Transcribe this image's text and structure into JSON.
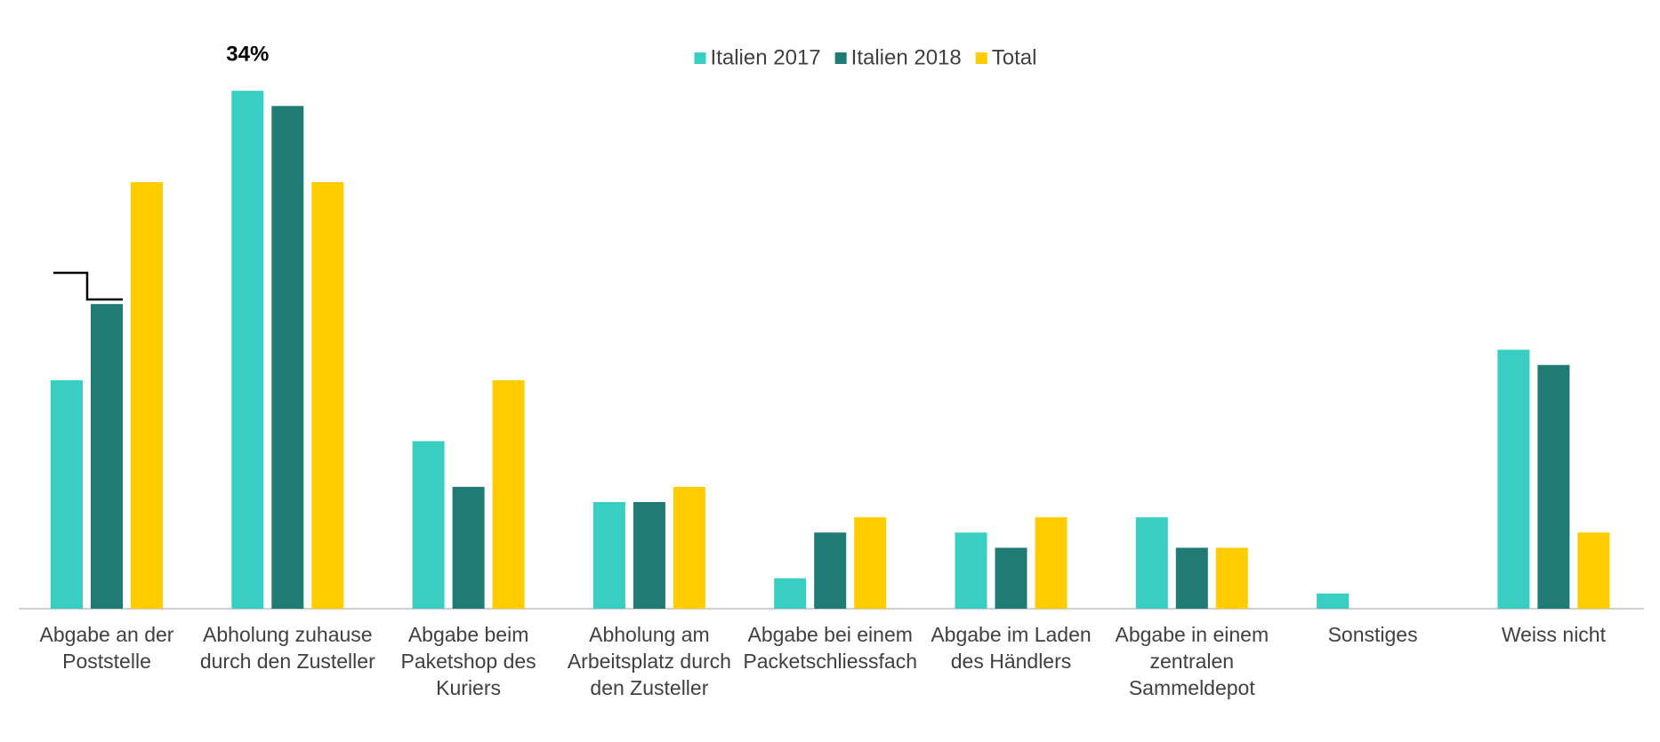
{
  "chart_data": {
    "type": "bar",
    "categories": [
      "Abgabe an der Poststelle",
      "Abholung zuhause durch den Zusteller",
      "Abgabe beim Paketshop des Kuriers",
      "Abholung am Arbeitsplatz durch den Zusteller",
      "Abgabe bei einem Packetschliessfach",
      "Abgabe im Laden des Händlers",
      "Abgabe in einem zentralen Sammeldepot",
      "Sonstiges",
      "Weiss nicht"
    ],
    "series": [
      {
        "name": "Italien 2017",
        "color": "#38cec2",
        "values": [
          15,
          34,
          11,
          7,
          2,
          5,
          6,
          1,
          17
        ],
        "value_labels": [
          null,
          "34%",
          null,
          null,
          null,
          null,
          null,
          null,
          null
        ]
      },
      {
        "name": "Italien 2018",
        "color": "#1f7b73",
        "values": [
          20,
          33,
          8,
          7,
          5,
          4,
          4,
          0,
          16
        ]
      },
      {
        "name": "Total",
        "color": "#ffcc00",
        "values": [
          28,
          28,
          15,
          8,
          6,
          6,
          4,
          0,
          5
        ]
      }
    ],
    "ylim": [
      0,
      35
    ],
    "grid": false,
    "legend": "top"
  }
}
